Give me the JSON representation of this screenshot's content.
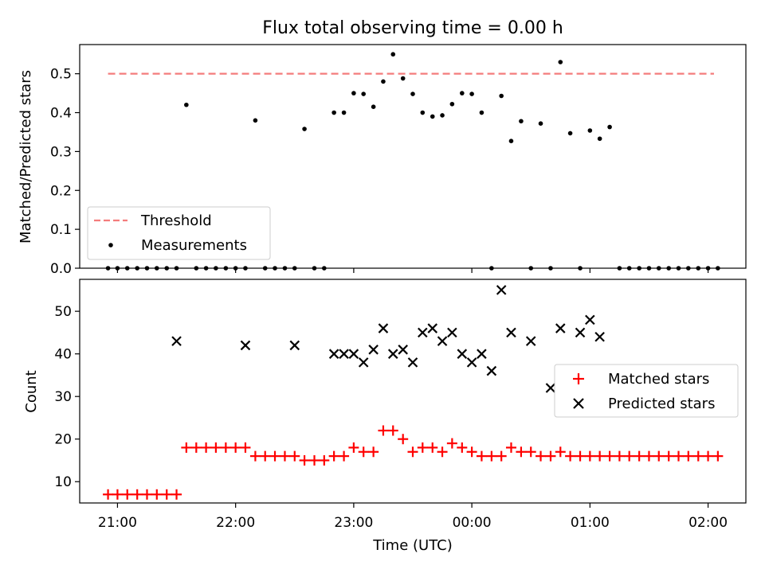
{
  "title": "Flux total observing time = 0.00 h",
  "chart_data": [
    {
      "type": "scatter",
      "ylabel": "Matched/Predicted stars",
      "ylim": [
        0,
        0.575
      ],
      "xlim": [
        -0.32,
        5.32
      ],
      "yticks": [
        0.0,
        0.1,
        0.2,
        0.3,
        0.4,
        0.5
      ],
      "ytick_labels": [
        "0.0",
        "0.1",
        "0.2",
        "0.3",
        "0.4",
        "0.5"
      ],
      "legend": {
        "placement": "lower-left",
        "entries": [
          "Threshold",
          "Measurements"
        ]
      },
      "series": [
        {
          "name": "Threshold",
          "kind": "dashed-line",
          "color": "#f47c7c",
          "x": [
            -0.08,
            5.05
          ],
          "y": [
            0.5,
            0.5
          ]
        },
        {
          "name": "Measurements",
          "kind": "dot",
          "color": "#000000",
          "x": [
            -0.08,
            0.0,
            0.083,
            0.167,
            0.25,
            0.333,
            0.417,
            0.5,
            0.583,
            0.667,
            0.75,
            0.833,
            0.917,
            1.0,
            1.083,
            1.167,
            1.25,
            1.333,
            1.417,
            1.5,
            1.583,
            1.667,
            1.75,
            1.833,
            1.917,
            2.0,
            2.083,
            2.167,
            2.25,
            2.333,
            2.417,
            2.5,
            2.583,
            2.667,
            2.75,
            2.833,
            2.917,
            3.0,
            3.083,
            3.167,
            3.25,
            3.333,
            3.417,
            3.5,
            3.583,
            3.667,
            3.75,
            3.833,
            3.917,
            4.0,
            4.083,
            4.167,
            4.25,
            4.333,
            4.417,
            4.5,
            4.583,
            4.667,
            4.75,
            4.833,
            4.917,
            5.0,
            5.083
          ],
          "y": [
            0,
            0,
            0,
            0,
            0,
            0,
            0,
            0,
            0.42,
            0,
            0,
            0,
            0,
            0,
            0,
            0.38,
            0,
            0,
            0,
            0,
            0.358,
            0,
            0,
            0.4,
            0.4,
            0.45,
            0.448,
            0.415,
            0.48,
            0.55,
            0.488,
            0.448,
            0.4,
            0.39,
            0.393,
            0.422,
            0.45,
            0.448,
            0.4,
            0,
            0.443,
            0.327,
            0.378,
            0,
            0.372,
            0,
            0.53,
            0.347,
            0,
            0.354,
            0.333,
            0.363,
            0,
            0,
            0,
            0,
            0,
            0,
            0,
            0,
            0,
            0,
            0
          ]
        }
      ]
    },
    {
      "type": "scatter",
      "xlabel": "Time (UTC)",
      "ylabel": "Count",
      "ylim": [
        5,
        57.5
      ],
      "xlim": [
        -0.32,
        5.32
      ],
      "yticks": [
        10,
        20,
        30,
        40,
        50
      ],
      "ytick_labels": [
        "10",
        "20",
        "30",
        "40",
        "50"
      ],
      "xticks": [
        0,
        1,
        2,
        3,
        4,
        5
      ],
      "xtick_labels": [
        "21:00",
        "22:00",
        "23:00",
        "00:00",
        "01:00",
        "02:00"
      ],
      "legend": {
        "placement": "center-right",
        "entries": [
          "Matched stars",
          "Predicted stars"
        ]
      },
      "series": [
        {
          "name": "Matched stars",
          "marker": "plus",
          "color": "#ff0000",
          "x": [
            -0.08,
            0.0,
            0.083,
            0.167,
            0.25,
            0.333,
            0.417,
            0.5,
            0.583,
            0.667,
            0.75,
            0.833,
            0.917,
            1.0,
            1.083,
            1.167,
            1.25,
            1.333,
            1.417,
            1.5,
            1.583,
            1.667,
            1.75,
            1.833,
            1.917,
            2.0,
            2.083,
            2.167,
            2.25,
            2.333,
            2.417,
            2.5,
            2.583,
            2.667,
            2.75,
            2.833,
            2.917,
            3.0,
            3.083,
            3.167,
            3.25,
            3.333,
            3.417,
            3.5,
            3.583,
            3.667,
            3.75,
            3.833,
            3.917,
            4.0,
            4.083,
            4.167,
            4.25,
            4.333,
            4.417,
            4.5,
            4.583,
            4.667,
            4.75,
            4.833,
            4.917,
            5.0,
            5.083
          ],
          "y": [
            7,
            7,
            7,
            7,
            7,
            7,
            7,
            7,
            18,
            18,
            18,
            18,
            18,
            18,
            18,
            16,
            16,
            16,
            16,
            16,
            15,
            15,
            15,
            16,
            16,
            18,
            17,
            17,
            22,
            22,
            20,
            17,
            18,
            18,
            17,
            19,
            18,
            17,
            16,
            16,
            16,
            18,
            17,
            17,
            16,
            16,
            17,
            16,
            16,
            16,
            16,
            16,
            16,
            16,
            16,
            16,
            16,
            16,
            16,
            16,
            16,
            16,
            16
          ]
        },
        {
          "name": "Predicted stars",
          "marker": "x",
          "color": "#000000",
          "x": [
            0.5,
            1.083,
            1.5,
            1.833,
            1.917,
            2.0,
            2.083,
            2.167,
            2.25,
            2.333,
            2.417,
            2.5,
            2.583,
            2.667,
            2.75,
            2.833,
            2.917,
            3.0,
            3.083,
            3.167,
            3.25,
            3.333,
            3.5,
            3.667,
            3.75,
            3.917,
            4.0,
            4.083
          ],
          "y": [
            43,
            42,
            42,
            40,
            40,
            40,
            38,
            41,
            46,
            40,
            41,
            38,
            45,
            46,
            43,
            45,
            40,
            38,
            40,
            36,
            55,
            45,
            43,
            32,
            46,
            45,
            48,
            44
          ]
        }
      ]
    }
  ]
}
